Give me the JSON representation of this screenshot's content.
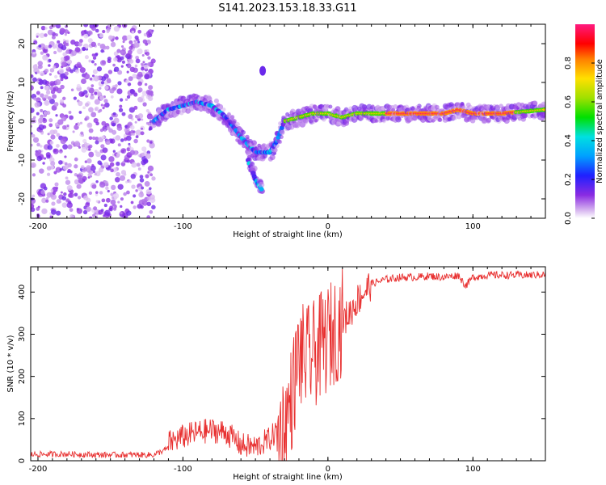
{
  "title": "S141.2023.153.18.33.G11",
  "colors": {
    "snr_line": "#e83030",
    "spectrogram_low": "#8a2be2",
    "spectrogram_high": "#ff0000"
  },
  "chart_data": [
    {
      "type": "heatmap",
      "title": "",
      "xlabel": "Height of straight line (km)",
      "ylabel": "Frequency (Hz)",
      "xlim": [
        -205,
        150
      ],
      "ylim": [
        -25,
        25
      ],
      "xticks": [
        "-200",
        "-100",
        "0",
        "100"
      ],
      "yticks": [
        "-20",
        "-10",
        "0",
        "10",
        "20"
      ],
      "colorbar": {
        "label": "Normalized spectral amplitude",
        "range": [
          0,
          1
        ],
        "ticks": [
          "0.0",
          "0.2",
          "0.4",
          "0.6",
          "0.8"
        ],
        "colormap": "rainbow"
      },
      "features": [
        {
          "name": "noise",
          "x_range": [
            -205,
            -120
          ],
          "y_range": [
            -25,
            25
          ],
          "amplitude": 0.1
        },
        {
          "name": "band",
          "points": [
            [
              -120,
              0
            ],
            [
              -110,
              3
            ],
            [
              -100,
              4
            ],
            [
              -90,
              5
            ],
            [
              -80,
              4
            ],
            [
              -70,
              1
            ],
            [
              -60,
              -4
            ],
            [
              -50,
              -8
            ],
            [
              -40,
              -8
            ],
            [
              -35,
              -5
            ],
            [
              -30,
              0
            ],
            [
              -20,
              1
            ],
            [
              -10,
              2
            ],
            [
              0,
              2
            ],
            [
              10,
              1
            ],
            [
              20,
              2
            ],
            [
              40,
              2
            ],
            [
              60,
              2
            ],
            [
              80,
              2
            ],
            [
              90,
              3
            ],
            [
              100,
              2
            ],
            [
              120,
              2
            ],
            [
              150,
              3
            ]
          ]
        },
        {
          "name": "drop-branch",
          "points": [
            [
              -55,
              -10
            ],
            [
              -50,
              -15
            ],
            [
              -45,
              -18
            ]
          ]
        },
        {
          "name": "upper-blob",
          "points": [
            [
              -45,
              13
            ]
          ]
        }
      ]
    },
    {
      "type": "line",
      "title": "",
      "xlabel": "Height of straight line (km)",
      "ylabel": "SNR (10 * v/v)",
      "xlim": [
        -205,
        150
      ],
      "ylim": [
        0,
        460
      ],
      "xticks": [
        "-200",
        "-100",
        "0",
        "100"
      ],
      "yticks": [
        "0",
        "100",
        "200",
        "300",
        "400"
      ],
      "series": [
        {
          "name": "",
          "x": [
            -205,
            -180,
            -160,
            -140,
            -120,
            -110,
            -100,
            -90,
            -80,
            -70,
            -60,
            -50,
            -40,
            -30,
            -25,
            -20,
            -15,
            -10,
            -5,
            0,
            5,
            10,
            15,
            20,
            25,
            30,
            40,
            50,
            60,
            70,
            80,
            90,
            95,
            100,
            110,
            120,
            130,
            140,
            150
          ],
          "values": [
            15,
            16,
            14,
            14,
            14,
            30,
            45,
            55,
            60,
            55,
            25,
            20,
            40,
            80,
            150,
            250,
            240,
            250,
            270,
            290,
            310,
            330,
            350,
            380,
            400,
            420,
            430,
            435,
            435,
            438,
            435,
            440,
            415,
            435,
            440,
            440,
            440,
            440,
            442
          ]
        }
      ]
    }
  ]
}
